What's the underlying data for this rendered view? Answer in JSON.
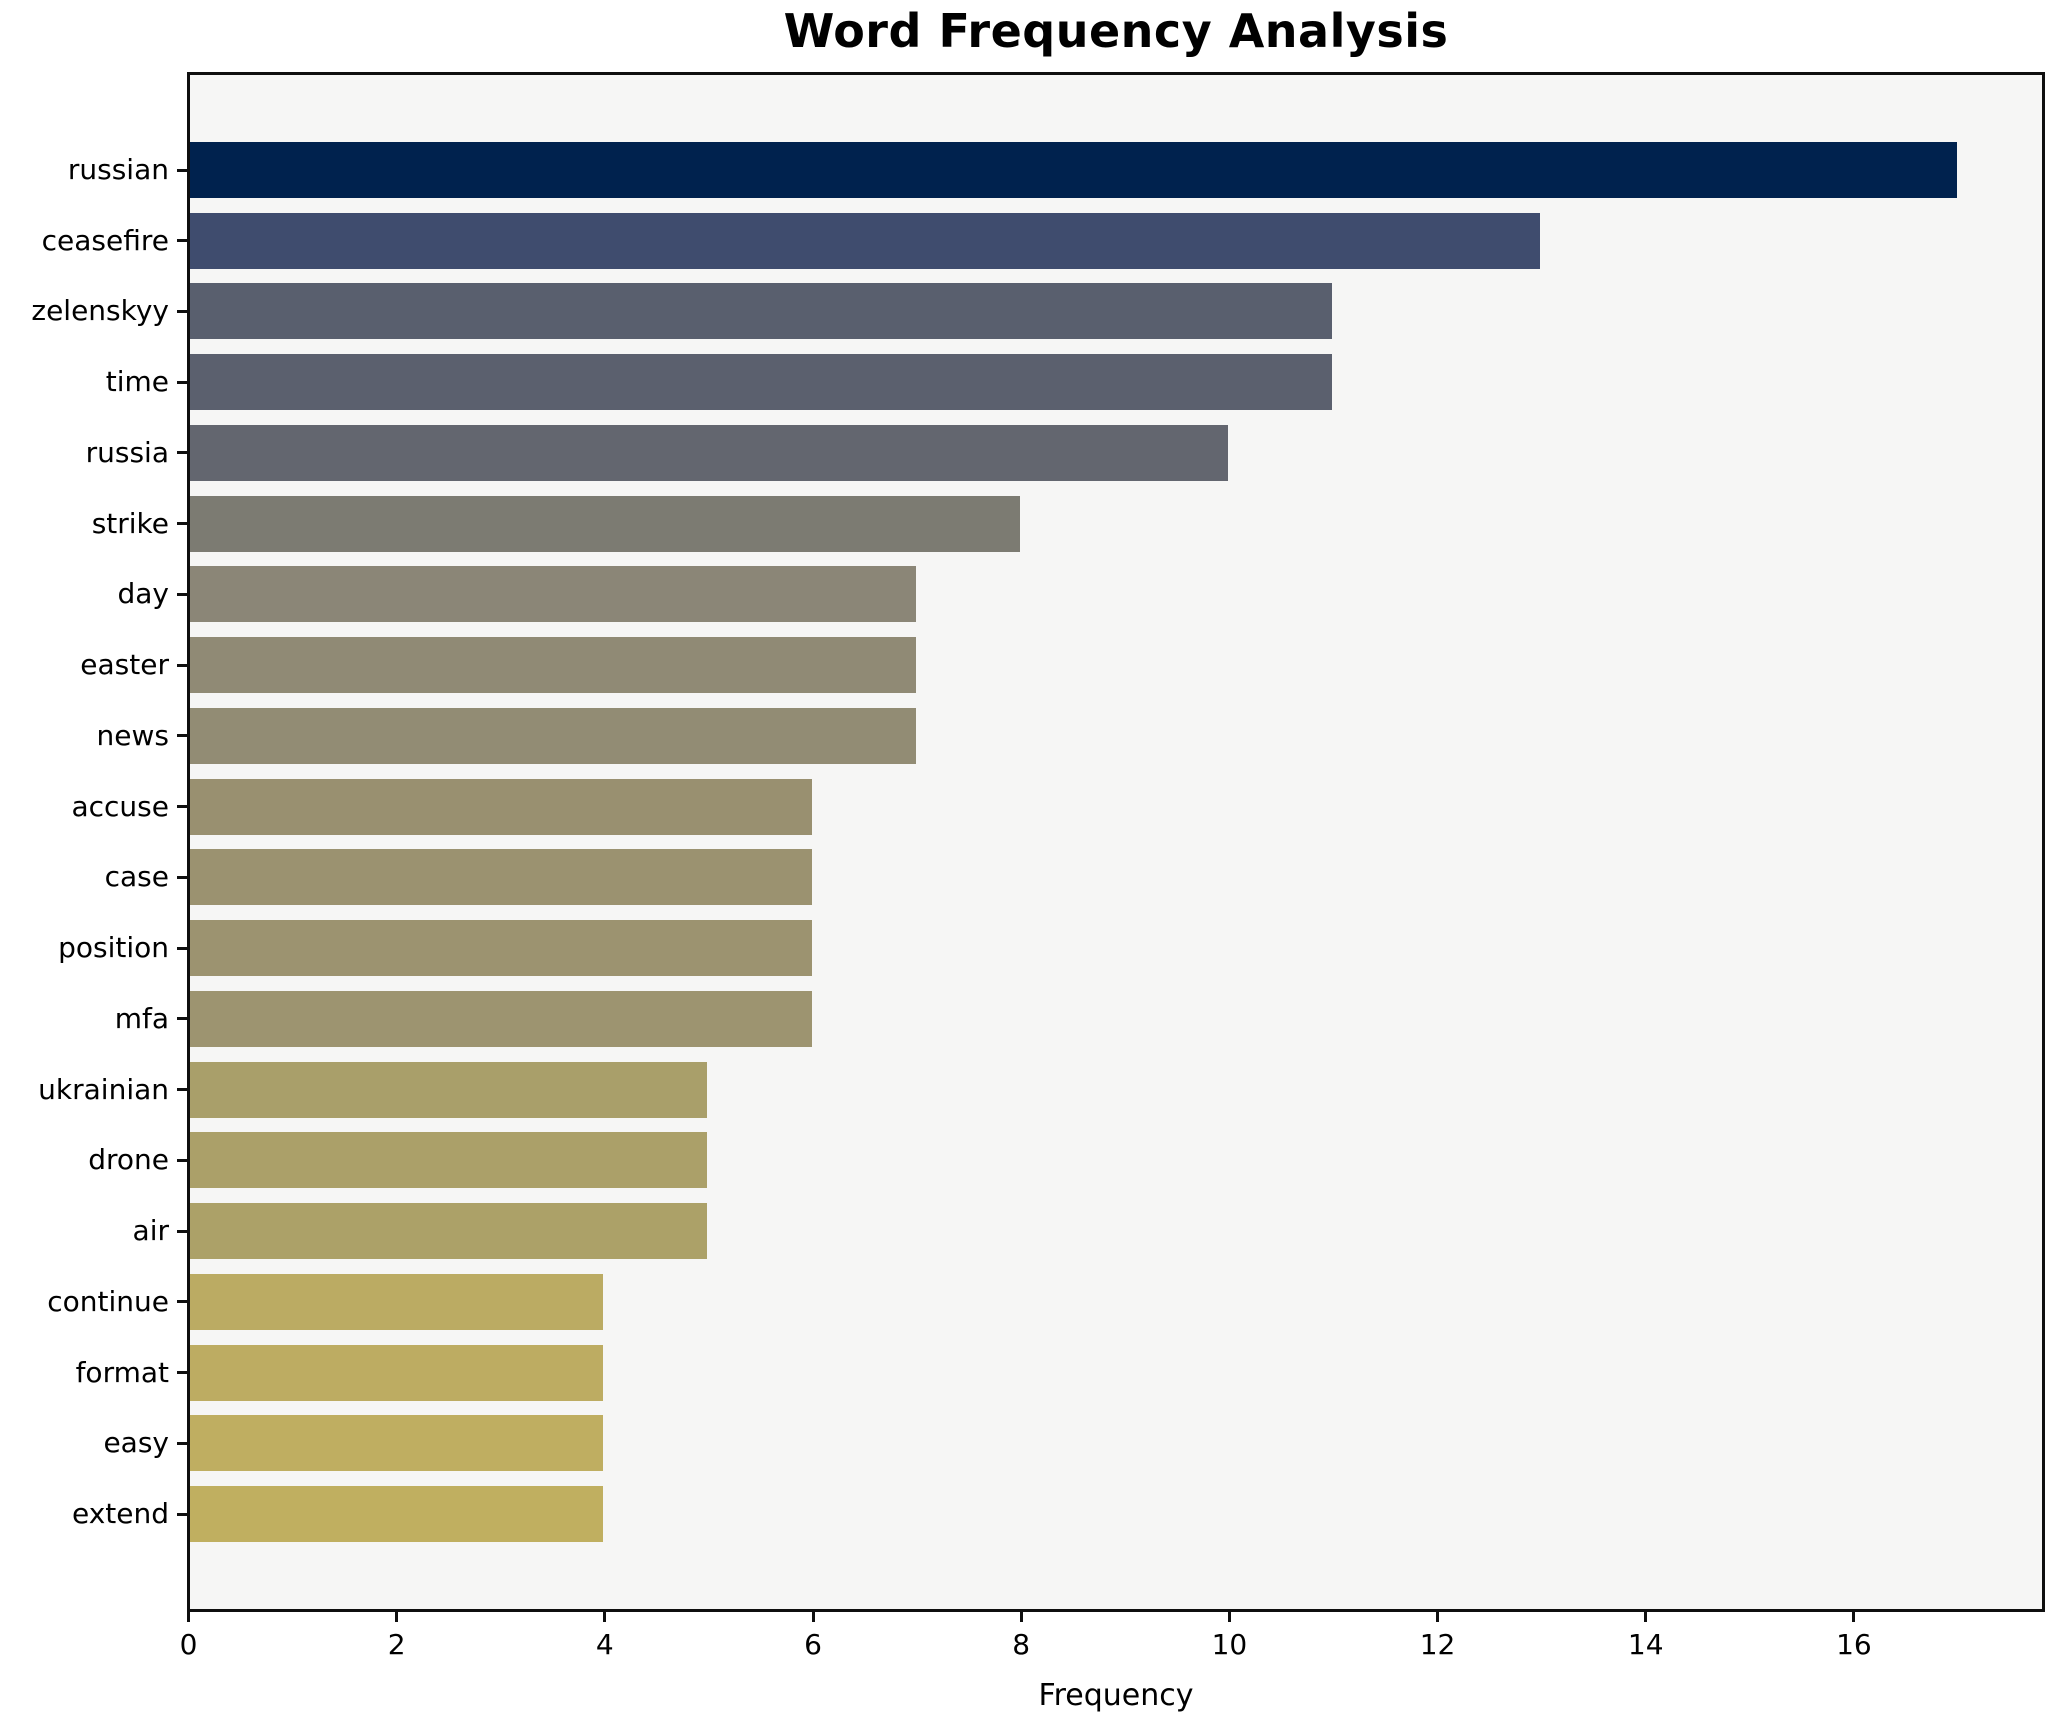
{
  "page": {
    "title": "Word Frequency Analysis"
  },
  "chart_data": {
    "type": "bar",
    "orientation": "horizontal",
    "title": "Word Frequency Analysis",
    "xlabel": "Frequency",
    "ylabel": "",
    "categories": [
      "russian",
      "ceasefire",
      "zelenskyy",
      "time",
      "russia",
      "strike",
      "day",
      "easter",
      "news",
      "accuse",
      "case",
      "position",
      "mfa",
      "ukrainian",
      "drone",
      "air",
      "continue",
      "format",
      "easy",
      "extend"
    ],
    "values": [
      17,
      13,
      11,
      11,
      10,
      8,
      7,
      7,
      7,
      6,
      6,
      6,
      6,
      5,
      5,
      5,
      4,
      4,
      4,
      4
    ],
    "bar_colors": [
      "#00224e",
      "#3f4c6e",
      "#595f6e",
      "#5b606e",
      "#63666f",
      "#7c7b72",
      "#8b8677",
      "#908a75",
      "#928c74",
      "#999070",
      "#9b9270",
      "#9c9370",
      "#9d9470",
      "#a99f6a",
      "#aba069",
      "#aca168",
      "#bbab63",
      "#bdac62",
      "#bfae61",
      "#c0af60"
    ],
    "colormap": "cividis",
    "x_ticks": [
      0,
      2,
      4,
      6,
      8,
      10,
      12,
      14,
      16
    ],
    "xlim": [
      0,
      17.85
    ],
    "grid": false,
    "legend": null,
    "plot_bg_color": "#f6f6f5",
    "figure_bg_color": "#ffffff",
    "spine_color": "#0f0f0f",
    "text_color": "#000000"
  }
}
